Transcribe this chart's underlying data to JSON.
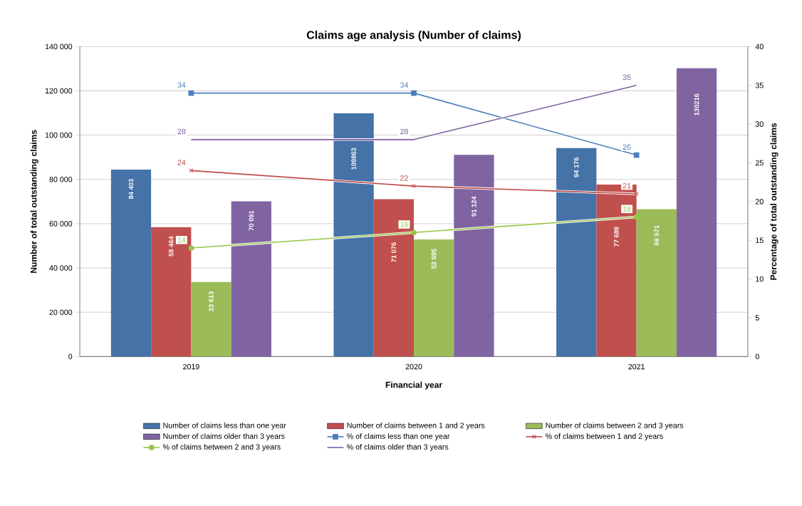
{
  "chart_data": {
    "type": "bar",
    "title": "Claims age analysis (Number of claims)",
    "xlabel": "Financial year",
    "ylabel": "Number of total outstanding claims",
    "y2label": "Percentage of total outstanding claims",
    "categories": [
      "2019",
      "2020",
      "2021"
    ],
    "series": [
      {
        "name": "Number of claims less than one year",
        "color": "#4572a7",
        "values": [
          84403,
          109863,
          94176
        ],
        "value_labels": [
          "84 403",
          "109863",
          "94 176"
        ]
      },
      {
        "name": "Number of claims between 1 and 2 years",
        "color": "#c0504d",
        "values": [
          58464,
          71076,
          77688
        ],
        "value_labels": [
          "58 464",
          "71 076",
          "77 688"
        ]
      },
      {
        "name": "Number of claims between 2 and 3 years",
        "color": "#9bbb59",
        "values": [
          33613,
          52895,
          66571
        ],
        "value_labels": [
          "33 613",
          "52 895",
          "66 571"
        ]
      },
      {
        "name": "Number of claims older than 3 years",
        "color": "#8064a2",
        "values": [
          70091,
          91124,
          130216
        ],
        "value_labels": [
          "70 091",
          "91 124",
          "130216"
        ]
      },
      {
        "name": "% of claims less than one year",
        "type": "line",
        "axis": "y2",
        "marker": "square",
        "color": "#4a7ebb",
        "values": [
          34,
          34,
          26
        ],
        "value_labels": [
          "34",
          "34",
          "26"
        ]
      },
      {
        "name": "% of claims between 1 and 2 years",
        "type": "line",
        "axis": "y2",
        "marker": "cross",
        "color": "#be4b48",
        "values": [
          24,
          22,
          21
        ],
        "value_labels": [
          "24",
          "22",
          "21"
        ]
      },
      {
        "name": "% of claims between 2 and 3 years",
        "type": "line",
        "axis": "y2",
        "marker": "circle",
        "color": "#98c548",
        "values": [
          14,
          16,
          18
        ],
        "value_labels": [
          "14",
          "16",
          "18"
        ]
      },
      {
        "name": "% of claims older than 3 years",
        "type": "line",
        "axis": "y2",
        "marker": "none",
        "color": "#7d60a0",
        "values": [
          28,
          28,
          35
        ],
        "value_labels": [
          "28",
          "28",
          "35"
        ]
      }
    ],
    "ylim": [
      0,
      140000
    ],
    "yticks": [
      0,
      {
        "value": 20000,
        "label": "20 000"
      },
      {
        "value": 40000,
        "label": "40 000"
      },
      {
        "value": 60000,
        "label": "60 000"
      },
      {
        "value": 80000,
        "label": "80 000"
      },
      {
        "value": 100000,
        "label": "100 000"
      },
      {
        "value": 120000,
        "label": "120 000"
      },
      {
        "value": 140000,
        "label": "140 000"
      }
    ],
    "y2lim": [
      0,
      40
    ],
    "y2ticks": [
      0,
      5,
      10,
      15,
      20,
      25,
      30,
      35,
      40
    ],
    "grid": "y",
    "legend": "bottom"
  }
}
